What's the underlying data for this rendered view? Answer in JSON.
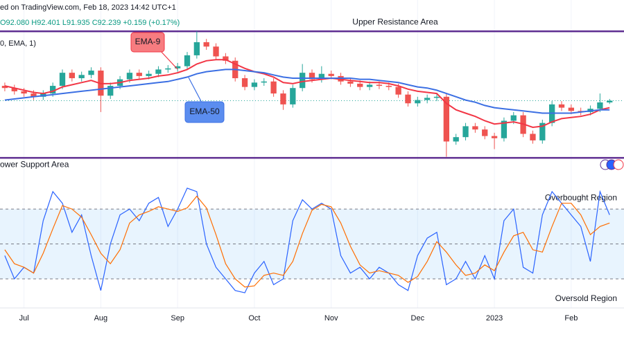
{
  "header": {
    "source": "ed on TradingView.com, Feb 18, 2023 14:42 UTC+1",
    "ohlc": "O92.080 H92.401 L91.935 C92.239 +0.159 (+0.17%)",
    "indicator": "0, EMA, 1)"
  },
  "chart_data": [
    {
      "type": "candlestick",
      "xlim": [
        -0.5,
        64.5
      ],
      "ylim": [
        86.5,
        100.2
      ],
      "up_color": "#26a69a",
      "down_color": "#ef5350",
      "open": [
        93.6,
        93.4,
        93.1,
        92.9,
        92.6,
        92.9,
        93.6,
        94.8,
        94.3,
        94.6,
        95.0,
        92.7,
        93.6,
        94.2,
        94.8,
        94.5,
        94.7,
        95.1,
        95.2,
        95.4,
        96.4,
        97.6,
        97.2,
        96.3,
        95.9,
        94.3,
        93.5,
        93.9,
        94.0,
        92.9,
        91.9,
        93.4,
        94.8,
        94.2,
        94.7,
        94.5,
        94.0,
        93.8,
        93.5,
        93.7,
        93.6,
        93.5,
        92.8,
        92.0,
        92.3,
        92.5,
        92.6,
        88.5,
        88.9,
        89.9,
        89.6,
        89.0,
        88.8,
        90.4,
        90.9,
        89.2,
        88.6,
        90.2,
        91.9,
        91.6,
        91.3,
        91.2,
        91.5,
        92.08
      ],
      "high": [
        93.9,
        93.7,
        93.4,
        93.2,
        93.2,
        93.9,
        95.1,
        95.1,
        94.9,
        95.3,
        95.3,
        93.9,
        94.5,
        95.1,
        95.1,
        95.0,
        95.4,
        95.5,
        95.7,
        96.7,
        98.6,
        97.9,
        97.5,
        96.6,
        96.2,
        94.6,
        94.2,
        94.3,
        94.3,
        93.2,
        93.7,
        95.6,
        95.1,
        95.4,
        95.0,
        94.8,
        94.3,
        94.1,
        94.0,
        94.0,
        93.9,
        93.8,
        93.1,
        92.6,
        92.8,
        92.9,
        92.9,
        89.2,
        90.2,
        90.2,
        89.9,
        89.3,
        90.7,
        91.2,
        91.2,
        89.5,
        90.5,
        92.2,
        92.2,
        91.9,
        91.6,
        91.8,
        92.9,
        92.401
      ],
      "low": [
        93.1,
        92.8,
        92.6,
        92.3,
        92.3,
        92.6,
        93.3,
        94.0,
        94.0,
        94.3,
        91.2,
        92.4,
        93.3,
        93.9,
        94.2,
        94.2,
        94.4,
        94.8,
        94.9,
        95.1,
        96.1,
        96.9,
        96.0,
        95.6,
        94.0,
        93.2,
        93.2,
        93.6,
        92.6,
        91.4,
        91.6,
        93.1,
        93.9,
        93.9,
        94.2,
        93.7,
        93.5,
        93.2,
        93.2,
        93.3,
        93.2,
        92.5,
        91.7,
        91.7,
        92.0,
        92.2,
        87.1,
        88.2,
        88.6,
        89.3,
        88.7,
        87.8,
        88.5,
        90.1,
        88.9,
        88.3,
        88.3,
        89.9,
        91.3,
        91.0,
        90.9,
        90.9,
        91.2,
        91.935
      ],
      "close": [
        93.4,
        93.1,
        92.9,
        92.6,
        92.9,
        93.6,
        94.8,
        94.3,
        94.6,
        95.0,
        92.7,
        93.6,
        94.2,
        94.8,
        94.5,
        94.7,
        95.1,
        95.2,
        95.4,
        96.4,
        97.6,
        97.2,
        96.3,
        95.9,
        94.3,
        93.5,
        93.9,
        94.0,
        92.9,
        91.9,
        93.4,
        94.8,
        94.2,
        94.7,
        94.5,
        94.0,
        93.8,
        93.5,
        93.7,
        93.6,
        93.5,
        92.8,
        92.0,
        92.3,
        92.5,
        92.6,
        88.5,
        88.9,
        89.9,
        89.6,
        89.0,
        88.8,
        90.4,
        90.9,
        89.2,
        88.6,
        90.2,
        91.9,
        91.6,
        91.3,
        91.2,
        91.5,
        92.08,
        92.239
      ],
      "series": [
        {
          "name": "EMA-9",
          "color": "#f23645",
          "values": [
            93.6,
            93.4,
            93.2,
            93.0,
            92.9,
            93.1,
            93.5,
            93.7,
            93.9,
            94.1,
            93.8,
            93.8,
            93.9,
            94.1,
            94.2,
            94.3,
            94.5,
            94.6,
            94.8,
            95.1,
            95.6,
            95.9,
            96.0,
            96.0,
            95.6,
            95.2,
            94.9,
            94.7,
            94.4,
            93.9,
            93.8,
            94.0,
            94.1,
            94.2,
            94.3,
            94.2,
            94.1,
            94.0,
            93.9,
            93.9,
            93.8,
            93.6,
            93.3,
            93.1,
            93.0,
            92.9,
            92.0,
            91.4,
            91.1,
            90.8,
            90.4,
            90.1,
            90.2,
            90.3,
            90.1,
            89.8,
            89.9,
            90.3,
            90.6,
            90.7,
            90.8,
            91.0,
            91.4,
            91.6
          ]
        },
        {
          "name": "EMA-50",
          "color": "#3b6fe3",
          "values": [
            92.3,
            92.4,
            92.5,
            92.6,
            92.7,
            92.8,
            92.9,
            93.0,
            93.1,
            93.2,
            93.3,
            93.4,
            93.5,
            93.6,
            93.7,
            93.8,
            93.9,
            94.0,
            94.2,
            94.4,
            94.7,
            94.9,
            95.0,
            95.1,
            95.1,
            95.0,
            94.9,
            94.8,
            94.6,
            94.4,
            94.3,
            94.3,
            94.3,
            94.3,
            94.3,
            94.3,
            94.3,
            94.2,
            94.2,
            94.1,
            94.0,
            93.9,
            93.7,
            93.5,
            93.4,
            93.2,
            92.9,
            92.6,
            92.3,
            92.1,
            91.8,
            91.6,
            91.5,
            91.4,
            91.3,
            91.2,
            91.1,
            91.1,
            91.1,
            91.1,
            91.2,
            91.3,
            91.4,
            91.4
          ]
        }
      ],
      "levels": [
        {
          "name": "Upper Resistance Area",
          "value": 98.6,
          "color": "#5e2d91"
        },
        {
          "name": "ower Support Area",
          "value": 87.0,
          "color": "#5e2d91"
        }
      ]
    },
    {
      "type": "line",
      "xlim": [
        -0.5,
        64.5
      ],
      "ylim": [
        -5,
        111
      ],
      "xticks": [
        {
          "value": 2,
          "label": "Jul"
        },
        {
          "value": 10,
          "label": "Aug"
        },
        {
          "value": 18,
          "label": "Sep"
        },
        {
          "value": 26,
          "label": "Oct"
        },
        {
          "value": 34,
          "label": "Nov"
        },
        {
          "value": 43,
          "label": "Dec"
        },
        {
          "value": 51,
          "label": "2023"
        },
        {
          "value": 59,
          "label": "Feb"
        }
      ],
      "levels": [
        80,
        50,
        20
      ],
      "annotations": [
        "Overbought Region",
        "Oversold Region"
      ],
      "series": [
        {
          "color": "#2962ff",
          "values": [
            40,
            20,
            30,
            25,
            70,
            95,
            85,
            60,
            75,
            40,
            10,
            50,
            75,
            80,
            70,
            85,
            90,
            65,
            80,
            98,
            95,
            50,
            30,
            20,
            10,
            8,
            25,
            35,
            15,
            20,
            70,
            88,
            80,
            85,
            80,
            40,
            25,
            30,
            20,
            30,
            25,
            15,
            10,
            40,
            55,
            60,
            15,
            20,
            35,
            20,
            40,
            20,
            70,
            80,
            30,
            25,
            75,
            95,
            85,
            75,
            65,
            35,
            95,
            75
          ]
        },
        {
          "color": "#ff6d00",
          "values": [
            45,
            33,
            30,
            25,
            42,
            63,
            83,
            80,
            73,
            58,
            42,
            33,
            45,
            68,
            75,
            78,
            82,
            80,
            78,
            81,
            91,
            81,
            58,
            33,
            20,
            13,
            14,
            23,
            25,
            23,
            35,
            59,
            79,
            84,
            82,
            68,
            48,
            32,
            25,
            27,
            25,
            23,
            17,
            22,
            35,
            52,
            43,
            32,
            23,
            25,
            32,
            27,
            43,
            57,
            60,
            45,
            43,
            65,
            85,
            85,
            75,
            58,
            65,
            68
          ]
        }
      ]
    }
  ]
}
